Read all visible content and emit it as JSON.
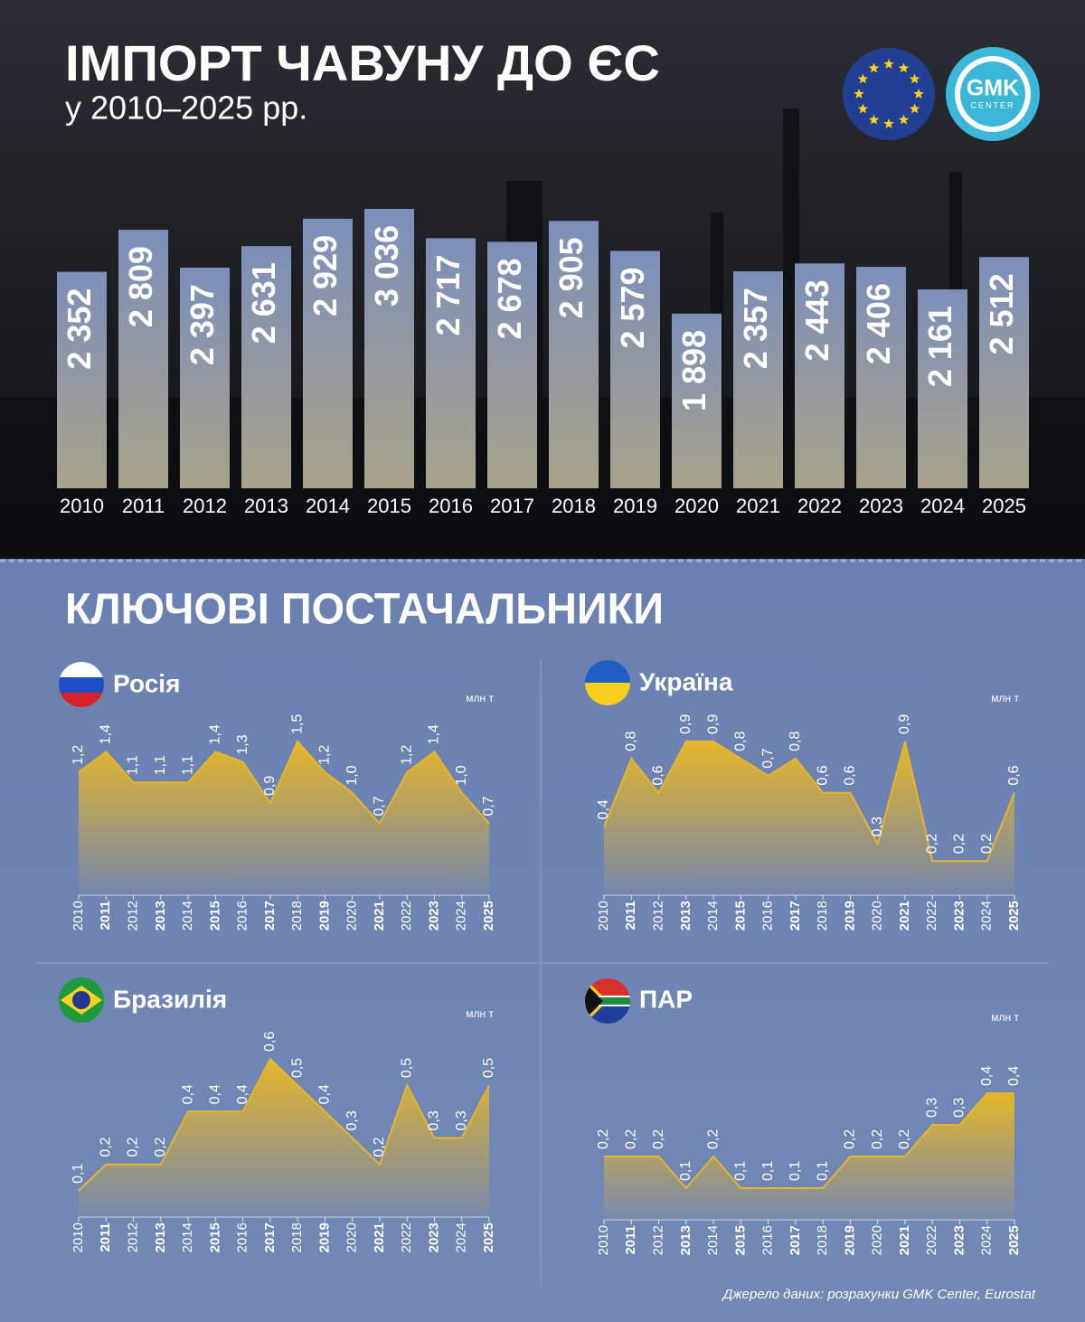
{
  "chart_data": [
    {
      "type": "bar",
      "title": "ІМПОРТ ЧАВУНУ ДО ЄС",
      "subtitle": "у 2010–2025 рр.",
      "categories": [
        "2010",
        "2011",
        "2012",
        "2013",
        "2014",
        "2015",
        "2016",
        "2017",
        "2018",
        "2019",
        "2020",
        "2021",
        "2022",
        "2023",
        "2024",
        "2025"
      ],
      "values": [
        2352,
        2809,
        2397,
        2631,
        2929,
        3036,
        2717,
        2678,
        2905,
        2579,
        1898,
        2357,
        2443,
        2406,
        2161,
        2512
      ],
      "value_labels": [
        "2 352",
        "2 809",
        "2 397",
        "2 631",
        "2 929",
        "3 036",
        "2 717",
        "2 678",
        "2 905",
        "2 579",
        "1 898",
        "2 357",
        "2 443",
        "2 406",
        "2 161",
        "2 512"
      ]
    },
    {
      "type": "area",
      "title": "Росія",
      "unit": "млн т",
      "color": "#e6b62a",
      "categories": [
        "2010",
        "2011",
        "2012",
        "2013",
        "2014",
        "2015",
        "2016",
        "2017",
        "2018",
        "2019",
        "2020",
        "2021",
        "2022",
        "2023",
        "2024",
        "2025"
      ],
      "values": [
        1.2,
        1.4,
        1.1,
        1.1,
        1.1,
        1.4,
        1.3,
        0.9,
        1.5,
        1.2,
        1.0,
        0.7,
        1.2,
        1.4,
        1.0,
        0.7
      ],
      "value_labels": [
        "1,2",
        "1,4",
        "1,1",
        "1,1",
        "1,1",
        "1,4",
        "1,3",
        "0,9",
        "1,5",
        "1,2",
        "1,0",
        "0,7",
        "1,2",
        "1,4",
        "1,0",
        "0,7"
      ]
    },
    {
      "type": "area",
      "title": "Україна",
      "unit": "млн т",
      "color": "#e6b62a",
      "categories": [
        "2010",
        "2011",
        "2012",
        "2013",
        "2014",
        "2015",
        "2016",
        "2017",
        "2018",
        "2019",
        "2020",
        "2021",
        "2022",
        "2023",
        "2024",
        "2025"
      ],
      "values": [
        0.4,
        0.8,
        0.6,
        0.9,
        0.9,
        0.8,
        0.7,
        0.8,
        0.6,
        0.6,
        0.3,
        0.9,
        0.2,
        0.2,
        0.2,
        0.6
      ],
      "value_labels": [
        "0,4",
        "0,8",
        "0,6",
        "0,9",
        "0,9",
        "0,8",
        "0,7",
        "0,8",
        "0,6",
        "0,6",
        "0,3",
        "0,9",
        "0,2",
        "0,2",
        "0,2",
        "0,6"
      ]
    },
    {
      "type": "area",
      "title": "Бразилія",
      "unit": "млн т",
      "color": "#e6b62a",
      "categories": [
        "2010",
        "2011",
        "2012",
        "2013",
        "2014",
        "2015",
        "2016",
        "2017",
        "2018",
        "2019",
        "2020",
        "2021",
        "2022",
        "2023",
        "2024",
        "2025"
      ],
      "values": [
        0.1,
        0.2,
        0.2,
        0.2,
        0.4,
        0.4,
        0.4,
        0.6,
        0.5,
        0.4,
        0.3,
        0.2,
        0.5,
        0.3,
        0.3,
        0.5
      ],
      "value_labels": [
        "0,1",
        "0,2",
        "0,2",
        "0,2",
        "0,4",
        "0,4",
        "0,4",
        "0,6",
        "0,5",
        "0,4",
        "0,3",
        "0,2",
        "0,5",
        "0,3",
        "0,3",
        "0,5"
      ]
    },
    {
      "type": "area",
      "title": "ПАР",
      "unit": "млн т",
      "color": "#e6b62a",
      "categories": [
        "2010",
        "2011",
        "2012",
        "2013",
        "2014",
        "2015",
        "2016",
        "2017",
        "2018",
        "2019",
        "2020",
        "2021",
        "2022",
        "2023",
        "2024",
        "2025"
      ],
      "values": [
        0.2,
        0.2,
        0.2,
        0.1,
        0.2,
        0.1,
        0.1,
        0.1,
        0.1,
        0.2,
        0.2,
        0.2,
        0.3,
        0.3,
        0.4,
        0.4
      ],
      "value_labels": [
        "0,2",
        "0,2",
        "0,2",
        "0,1",
        "0,2",
        "0,1",
        "0,1",
        "0,1",
        "0,1",
        "0,2",
        "0,2",
        "0,2",
        "0,3",
        "0,3",
        "0,4",
        "0,4"
      ]
    }
  ],
  "section_title": "КЛЮЧОВІ ПОСТАЧАЛЬНИКИ",
  "logo": {
    "name": "GMK",
    "tagline": "CENTER"
  },
  "source": "Джерело даних: розрахунки GMK Center, Eurostat"
}
